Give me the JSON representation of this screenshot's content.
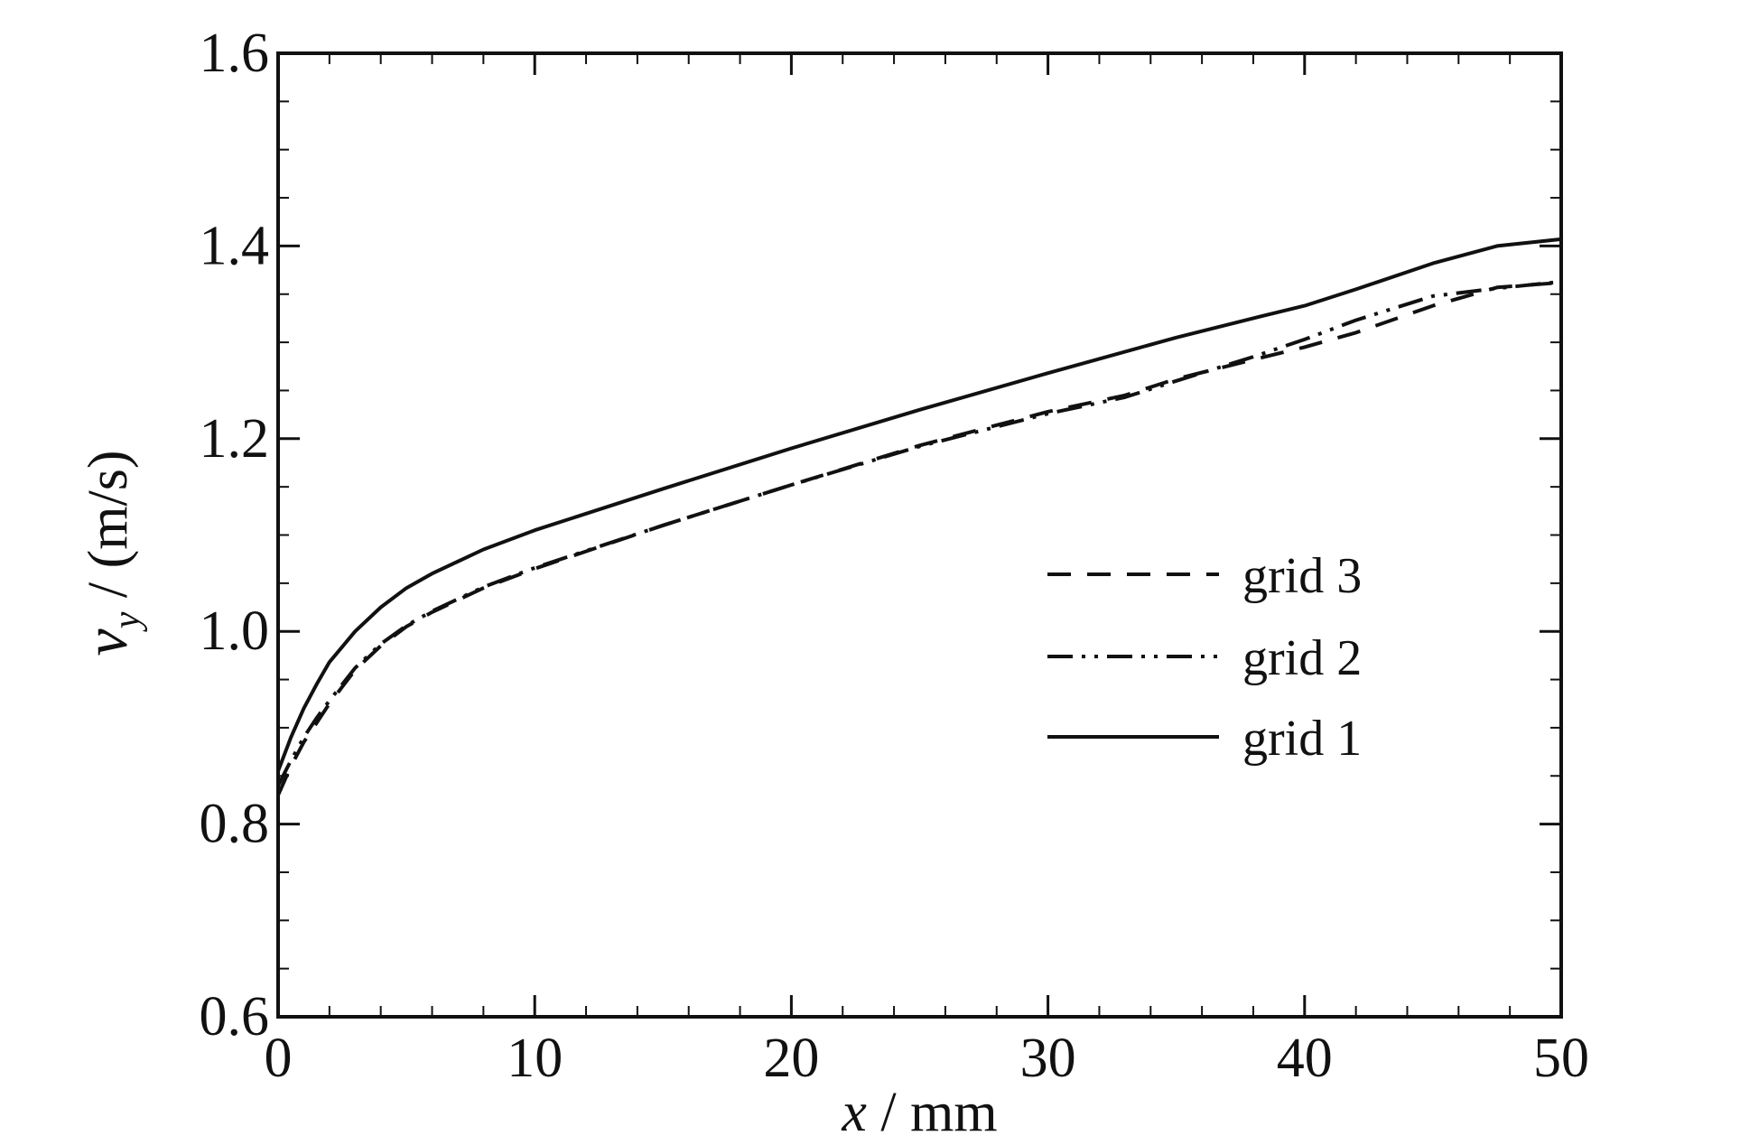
{
  "chart_data": {
    "type": "line",
    "title": "",
    "xlabel": {
      "var": "x",
      "rest": " / mm"
    },
    "ylabel": {
      "var": "v",
      "sub": "y",
      "rest": " / (m/s)"
    },
    "xlim": [
      0,
      50
    ],
    "ylim": [
      0.6,
      1.6
    ],
    "xticks": [
      0,
      10,
      20,
      30,
      40,
      50
    ],
    "xtick_labels": [
      "0",
      "10",
      "20",
      "30",
      "40",
      "50"
    ],
    "yticks": [
      0.6,
      0.8,
      1.0,
      1.2,
      1.4,
      1.6
    ],
    "ytick_labels": [
      "0.6",
      "0.8",
      "1.0",
      "1.2",
      "1.4",
      "1.6"
    ],
    "grid": false,
    "legend_position": "center-right",
    "series": [
      {
        "name": "grid 3",
        "style": "dashed",
        "color": "#111111",
        "x": [
          0,
          0.5,
          1,
          1.5,
          2,
          3,
          4,
          5,
          6,
          8,
          10,
          15,
          20,
          25,
          30,
          33,
          35,
          38,
          40,
          42,
          45,
          47.5,
          50
        ],
        "y": [
          0.83,
          0.86,
          0.885,
          0.905,
          0.925,
          0.96,
          0.985,
          1.005,
          1.02,
          1.045,
          1.065,
          1.11,
          1.152,
          1.193,
          1.228,
          1.245,
          1.262,
          1.282,
          1.295,
          1.31,
          1.338,
          1.357,
          1.362
        ]
      },
      {
        "name": "grid 2",
        "style": "dashdotdot",
        "color": "#111111",
        "x": [
          0,
          0.5,
          1,
          1.5,
          2,
          3,
          4,
          5,
          6,
          8,
          10,
          15,
          20,
          25,
          30,
          33,
          35,
          38,
          40,
          42,
          45,
          47.5,
          50
        ],
        "y": [
          0.84,
          0.866,
          0.89,
          0.91,
          0.928,
          0.962,
          0.987,
          1.006,
          1.021,
          1.046,
          1.066,
          1.11,
          1.152,
          1.192,
          1.226,
          1.243,
          1.26,
          1.285,
          1.303,
          1.323,
          1.348,
          1.356,
          1.363
        ]
      },
      {
        "name": "grid 1",
        "style": "solid",
        "color": "#111111",
        "x": [
          0,
          0.5,
          1,
          1.5,
          2,
          3,
          4,
          5,
          6,
          8,
          10,
          15,
          20,
          25,
          30,
          35,
          38,
          40,
          42,
          45,
          47.5,
          50
        ],
        "y": [
          0.855,
          0.89,
          0.92,
          0.945,
          0.968,
          1.0,
          1.025,
          1.045,
          1.06,
          1.085,
          1.105,
          1.148,
          1.19,
          1.23,
          1.268,
          1.305,
          1.325,
          1.338,
          1.355,
          1.382,
          1.4,
          1.407
        ]
      }
    ]
  }
}
